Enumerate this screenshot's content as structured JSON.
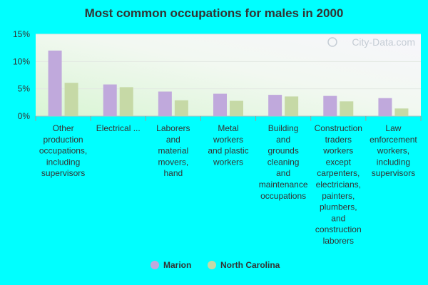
{
  "chart_data": {
    "type": "bar",
    "title": "Most common occupations for males in 2000",
    "watermark": "City-Data.com",
    "categories": [
      [
        "Other",
        "production",
        "occupations,",
        "including",
        "supervisors"
      ],
      [
        "Electrical ..."
      ],
      [
        "Laborers",
        "and",
        "material",
        "movers,",
        "hand"
      ],
      [
        "Metal",
        "workers",
        "and plastic",
        "workers"
      ],
      [
        "Building",
        "and",
        "grounds",
        "cleaning",
        "and",
        "maintenance",
        "occupations"
      ],
      [
        "Construction",
        "traders",
        "workers",
        "except",
        "carpenters,",
        "electricians,",
        "painters,",
        "plumbers,",
        "and",
        "construction",
        "laborers"
      ],
      [
        "Law",
        "enforcement",
        "workers,",
        "including",
        "supervisors"
      ]
    ],
    "series": [
      {
        "name": "Marion",
        "color": "#c0a9dc",
        "values": [
          12.0,
          5.8,
          4.5,
          4.1,
          3.9,
          3.7,
          3.3
        ]
      },
      {
        "name": "North Carolina",
        "color": "#c6d9a6",
        "values": [
          6.1,
          5.3,
          2.9,
          2.8,
          3.6,
          2.7,
          1.4
        ]
      }
    ],
    "y_ticks": [
      "0%",
      "5%",
      "10%",
      "15%"
    ],
    "y_tick_values": [
      0,
      5,
      10,
      15
    ],
    "ylim": [
      0,
      15
    ],
    "grid": true,
    "legend_position": "bottom-center"
  },
  "colors": {
    "background": "#00ffff",
    "text": "#333333"
  }
}
